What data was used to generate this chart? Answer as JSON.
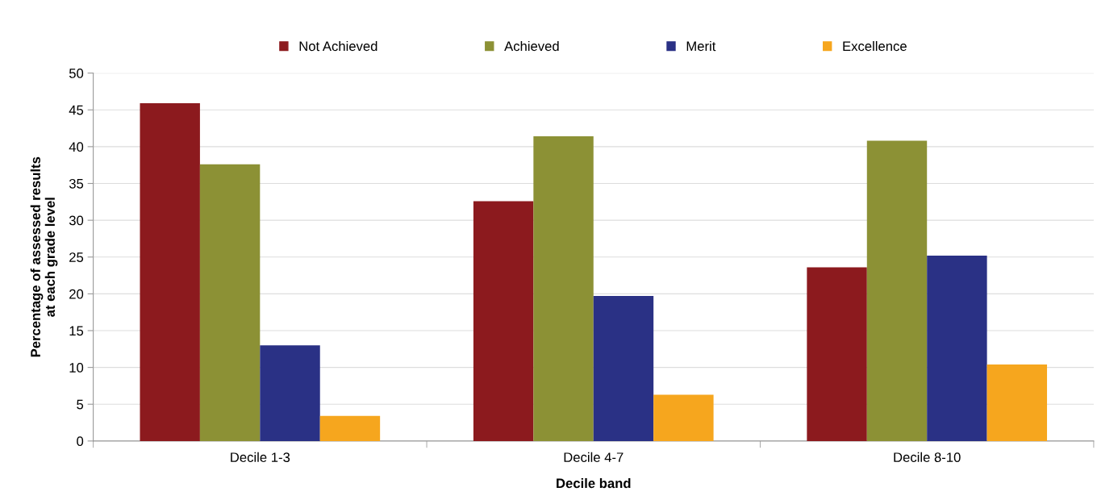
{
  "chart_data": {
    "type": "bar",
    "xlabel": "Decile band",
    "ylabel": "Percentage of assessed results\nat each grade level",
    "categories": [
      "Decile 1-3",
      "Decile 4-7",
      "Decile 8-10"
    ],
    "series": [
      {
        "name": "Not Achieved",
        "color": "#8c1a1e",
        "values": [
          45.9,
          32.6,
          23.6
        ]
      },
      {
        "name": "Achieved",
        "color": "#8c9135",
        "values": [
          37.6,
          41.4,
          40.8
        ]
      },
      {
        "name": "Merit",
        "color": "#2a3185",
        "values": [
          13.0,
          19.7,
          25.2
        ]
      },
      {
        "name": "Excellence",
        "color": "#f6a61e",
        "values": [
          3.4,
          6.3,
          10.4
        ]
      }
    ],
    "ylim": [
      0,
      50
    ],
    "yticks": [
      0,
      5,
      10,
      15,
      20,
      25,
      30,
      35,
      40,
      45,
      50
    ],
    "grid": "y",
    "legend": "top"
  }
}
